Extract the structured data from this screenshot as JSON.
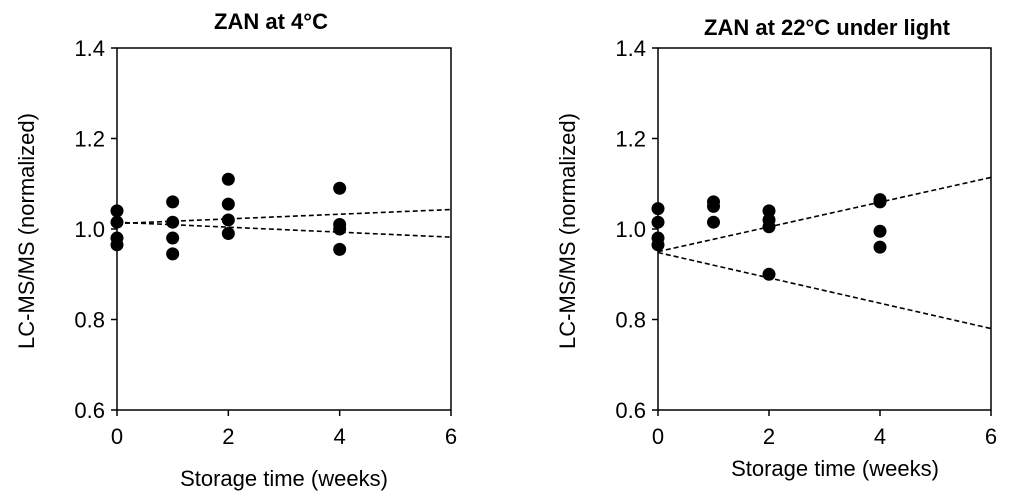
{
  "chart_data": [
    {
      "type": "scatter",
      "title": "ZAN at 4°C",
      "xlabel": "Storage time (weeks)",
      "ylabel": "LC-MS/MS  (normalized)",
      "xlim": [
        0,
        6
      ],
      "ylim": [
        0.6,
        1.4
      ],
      "xticks": [
        "0",
        "2",
        "4",
        "6"
      ],
      "yticks": [
        "0.6",
        "0.8",
        "1.0",
        "1.2",
        "1.4"
      ],
      "grid": false,
      "legend": "none",
      "points": [
        {
          "x": 0,
          "y": 1.04
        },
        {
          "x": 0,
          "y": 1.015
        },
        {
          "x": 0,
          "y": 0.98
        },
        {
          "x": 0,
          "y": 0.965
        },
        {
          "x": 1,
          "y": 1.06
        },
        {
          "x": 1,
          "y": 1.015
        },
        {
          "x": 1,
          "y": 0.98
        },
        {
          "x": 1,
          "y": 0.945
        },
        {
          "x": 2,
          "y": 1.11
        },
        {
          "x": 2,
          "y": 1.055
        },
        {
          "x": 2,
          "y": 1.02
        },
        {
          "x": 2,
          "y": 0.99
        },
        {
          "x": 4,
          "y": 1.09
        },
        {
          "x": 4,
          "y": 1.01
        },
        {
          "x": 4,
          "y": 1.0
        },
        {
          "x": 4,
          "y": 0.955
        }
      ],
      "lines": [
        {
          "x": [
            0,
            6
          ],
          "y": [
            1.012,
            1.043
          ],
          "style": "dashed"
        },
        {
          "x": [
            0,
            6
          ],
          "y": [
            1.015,
            0.982
          ],
          "style": "dashed"
        }
      ],
      "marker_color": "#000000"
    },
    {
      "type": "scatter",
      "title": "ZAN at 22°C under light",
      "xlabel": "Storage time (weeks)",
      "ylabel": "LC-MS/MS  (normalized)",
      "xlim": [
        0,
        6
      ],
      "ylim": [
        0.6,
        1.4
      ],
      "xticks": [
        "0",
        "2",
        "4",
        "6"
      ],
      "yticks": [
        "0.6",
        "0.8",
        "1.0",
        "1.2",
        "1.4"
      ],
      "grid": false,
      "legend": "none",
      "points": [
        {
          "x": 0,
          "y": 1.045
        },
        {
          "x": 0,
          "y": 1.015
        },
        {
          "x": 0,
          "y": 0.98
        },
        {
          "x": 0,
          "y": 0.965
        },
        {
          "x": 1,
          "y": 1.06
        },
        {
          "x": 1,
          "y": 1.05
        },
        {
          "x": 1,
          "y": 1.015
        },
        {
          "x": 2,
          "y": 1.04
        },
        {
          "x": 2,
          "y": 1.02
        },
        {
          "x": 2,
          "y": 1.005
        },
        {
          "x": 2,
          "y": 0.9
        },
        {
          "x": 4,
          "y": 1.065
        },
        {
          "x": 4,
          "y": 1.06
        },
        {
          "x": 4,
          "y": 0.995
        },
        {
          "x": 4,
          "y": 0.96
        }
      ],
      "lines": [
        {
          "x": [
            0,
            6
          ],
          "y": [
            0.95,
            1.114
          ],
          "style": "dashed"
        },
        {
          "x": [
            0,
            6
          ],
          "y": [
            0.948,
            0.78
          ],
          "style": "dashed"
        }
      ],
      "marker_color": "#000000"
    }
  ]
}
